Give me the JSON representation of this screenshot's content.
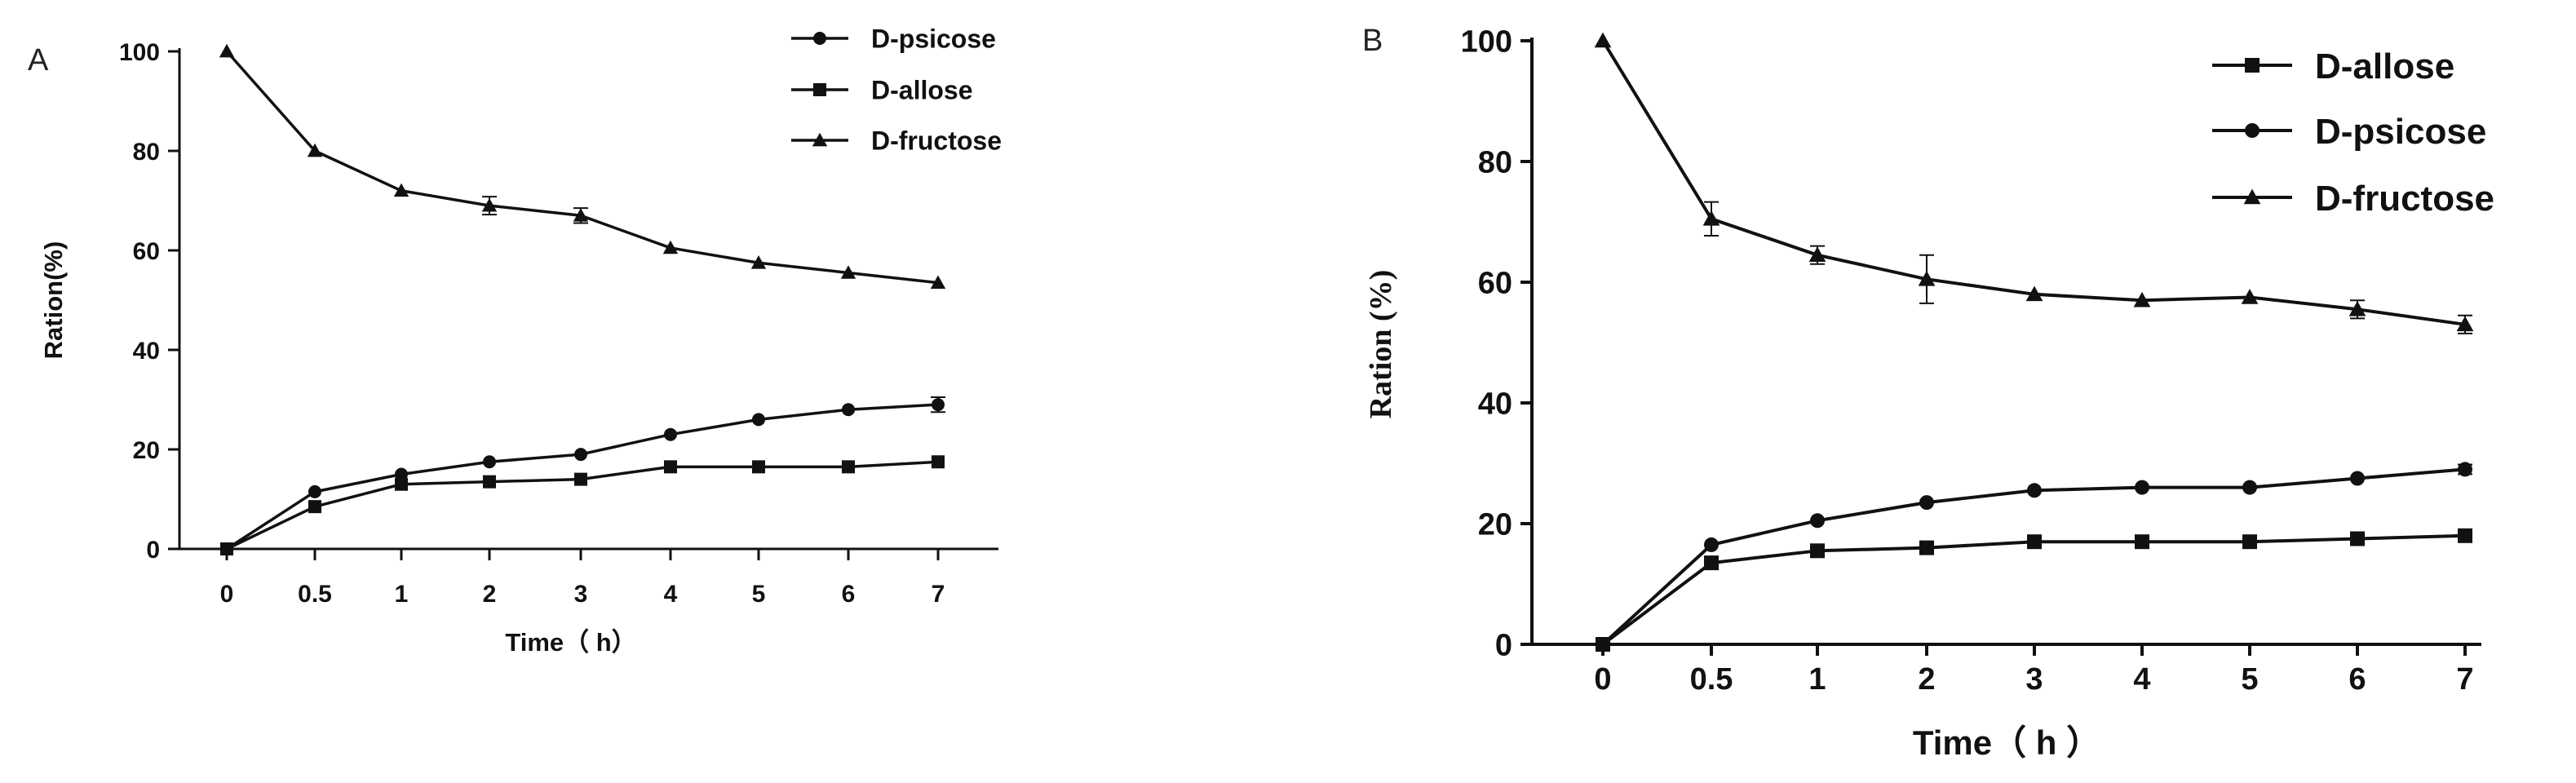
{
  "chart_data": [
    {
      "panel": "A",
      "type": "line",
      "categories": [
        "0",
        "0.5",
        "1",
        "2",
        "3",
        "4",
        "5",
        "6",
        "7"
      ],
      "xlabel": "Time（ h）",
      "ylabel": "Ration(%)",
      "ylim": [
        0,
        100
      ],
      "yticks": [
        0,
        20,
        40,
        60,
        80,
        100
      ],
      "legend_position": "top-right",
      "series": [
        {
          "name": "D-psicose",
          "marker": "circle",
          "values": [
            0,
            11.5,
            15,
            17.5,
            19,
            23,
            26,
            28,
            29
          ],
          "errors": [
            0,
            0,
            0,
            0,
            0,
            0,
            0,
            0,
            1.5
          ]
        },
        {
          "name": "D-allose",
          "marker": "square",
          "values": [
            0,
            8.5,
            13,
            13.5,
            14,
            16.5,
            16.5,
            16.5,
            17.5
          ],
          "errors": [
            0,
            0,
            0,
            0,
            0,
            0,
            0,
            0,
            0
          ]
        },
        {
          "name": "D-fructose",
          "marker": "triangle",
          "values": [
            100,
            80,
            72,
            69,
            67,
            60.5,
            57.5,
            55.5,
            53.5
          ],
          "errors": [
            0,
            0,
            0,
            1.8,
            1.5,
            0,
            0,
            0,
            0
          ]
        }
      ]
    },
    {
      "panel": "B",
      "type": "line",
      "categories": [
        "0",
        "0.5",
        "1",
        "2",
        "3",
        "4",
        "5",
        "6",
        "7"
      ],
      "xlabel": "Time（ h ）",
      "ylabel": "Ration (%)",
      "ylim": [
        0,
        100
      ],
      "yticks": [
        0,
        20,
        40,
        60,
        80,
        100
      ],
      "legend_position": "top-right",
      "series": [
        {
          "name": "D-allose",
          "marker": "square",
          "values": [
            0,
            13.5,
            15.5,
            16,
            17,
            17,
            17,
            17.5,
            18
          ],
          "errors": [
            0,
            0,
            0,
            0,
            0,
            0,
            0,
            0,
            0
          ]
        },
        {
          "name": "D-psicose",
          "marker": "circle",
          "values": [
            0,
            16.5,
            20.5,
            23.5,
            25.5,
            26,
            26,
            27.5,
            29
          ],
          "errors": [
            0,
            0,
            0,
            0,
            0,
            0,
            0,
            0,
            0.8
          ]
        },
        {
          "name": "D-fructose",
          "marker": "triangle",
          "values": [
            100,
            70.5,
            64.5,
            60.5,
            58,
            57,
            57.5,
            55.5,
            53
          ],
          "errors": [
            0,
            2.8,
            1.5,
            4,
            0,
            0,
            0,
            1.5,
            1.5
          ]
        }
      ]
    }
  ]
}
